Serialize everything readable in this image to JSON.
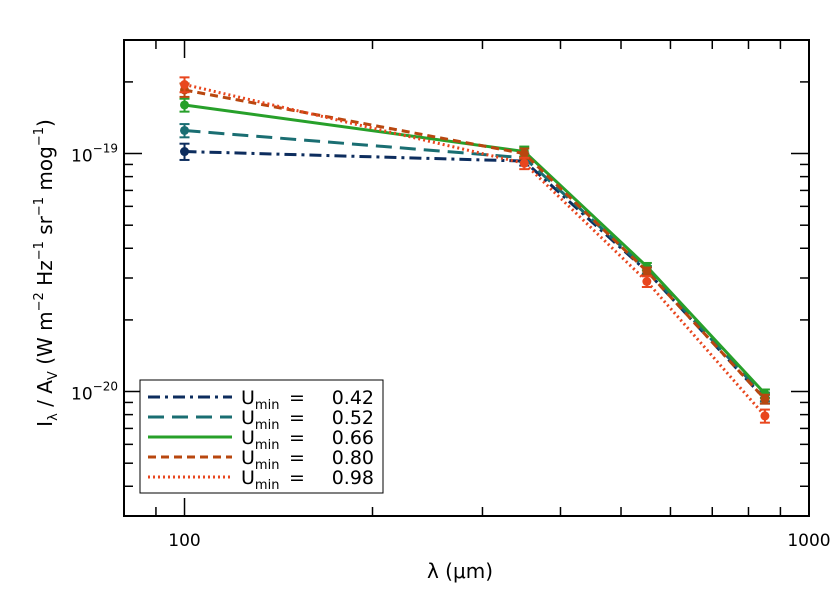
{
  "chart_data": {
    "type": "line",
    "xlabel": "λ (μm)",
    "ylabel_parts": {
      "i": "I",
      "i_sub": "λ",
      "slash": " / A",
      "a_sub": "V",
      "units_a": " (W m",
      "exp1": "−2",
      "units_b": " Hz",
      "exp2": "−1",
      "units_c": " sr",
      "exp3": "−1",
      "units_d": " mog",
      "exp4": "−1",
      "units_e": ")"
    },
    "x_scale": "log",
    "y_scale": "log",
    "xlim": [
      80,
      1000
    ],
    "ylim": [
      3e-21,
      3e-19
    ],
    "x_tick_labels": [
      {
        "value": 100,
        "label": "100"
      },
      {
        "value": 1000,
        "label": "1000"
      }
    ],
    "y_tick_labels": [
      {
        "value": 1e-19,
        "base": "10",
        "exp": "−19"
      },
      {
        "value": 1e-20,
        "base": "10",
        "exp": "−20"
      }
    ],
    "x": [
      100,
      350,
      550,
      850
    ],
    "legend": {
      "symbol": "U",
      "subscript": "min",
      "equals": "="
    },
    "legend_position": "bottom-left",
    "grid": false,
    "series": [
      {
        "label": "0.42",
        "color": "#0d2d5e",
        "dash": "dashdot",
        "values": [
          1.02e-19,
          9.3e-20,
          3.2e-20,
          9.3e-21
        ],
        "errors": [
          8e-21,
          4e-21,
          1.2e-21,
          4e-22
        ]
      },
      {
        "label": "0.52",
        "color": "#1a6e72",
        "dash": "dash",
        "values": [
          1.25e-19,
          9.6e-20,
          3.25e-20,
          9.5e-21
        ],
        "errors": [
          8e-21,
          4e-21,
          1.2e-21,
          4e-22
        ]
      },
      {
        "label": "0.66",
        "color": "#27a02a",
        "dash": "solid",
        "values": [
          1.6e-19,
          1.02e-19,
          3.35e-20,
          9.8e-21
        ],
        "errors": [
          1e-20,
          5e-21,
          1.2e-21,
          4e-22
        ]
      },
      {
        "label": "0.80",
        "color": "#b8470f",
        "dash": "shortdash",
        "values": [
          1.85e-19,
          1e-19,
          3.2e-20,
          9.3e-21
        ],
        "errors": [
          1.2e-20,
          5e-21,
          1.2e-21,
          4e-22
        ]
      },
      {
        "label": "0.98",
        "color": "#e8461e",
        "dash": "dot",
        "values": [
          1.95e-19,
          9.1e-20,
          2.9e-20,
          7.9e-21
        ],
        "errors": [
          1.4e-20,
          5e-21,
          1.5e-21,
          5e-22
        ]
      }
    ]
  }
}
